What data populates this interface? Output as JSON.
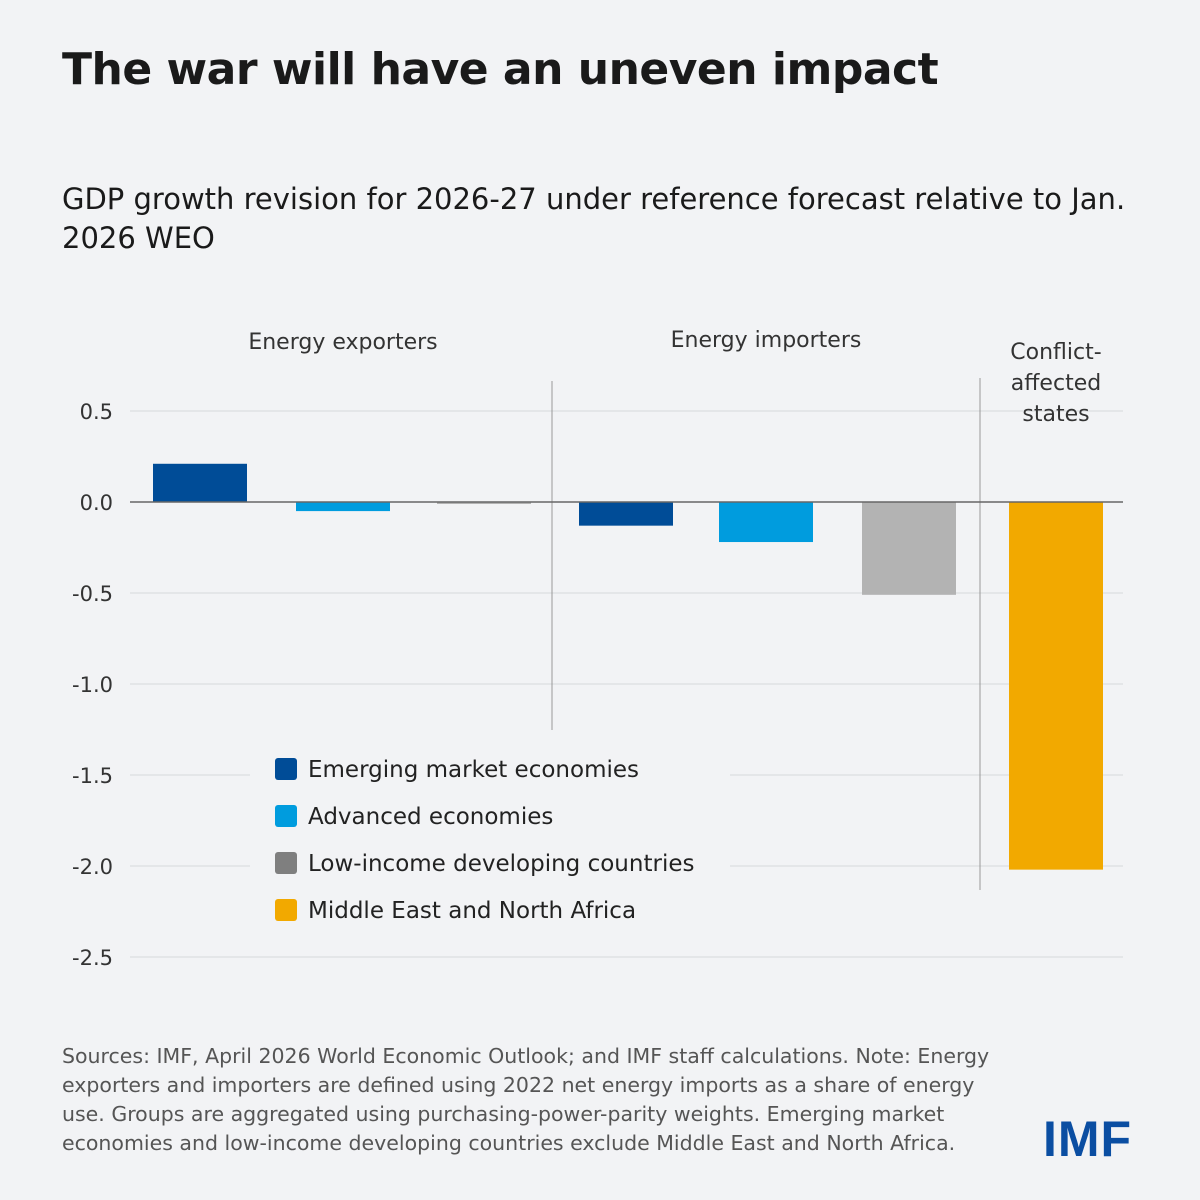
{
  "title": "The war will have an uneven impact",
  "subtitle": "GDP growth revision for 2026-27 under reference forecast relative to Jan. 2026 WEO",
  "note": "Sources: IMF, April 2026 World Economic Outlook; and IMF staff calculations. Note: Energy exporters and importers are defined using 2022 net energy imports as a share of energy use. Groups are aggregated using purchasing-power-parity weights. Emerging market economies and low-income developing countries exclude Middle East and North Africa.",
  "logo": "IMF",
  "chart_data": {
    "type": "bar",
    "ylim": [
      -2.5,
      0.5
    ],
    "yticks": [
      "0.5",
      "0.0",
      "-0.5",
      "-1.0",
      "-1.5",
      "-2.0",
      "-2.5"
    ],
    "grid": true,
    "legend_placement": "bottom-left",
    "groups": [
      {
        "label": "Energy exporters",
        "bars": [
          {
            "series": "Emerging market economies",
            "value": 0.21
          },
          {
            "series": "Advanced economies",
            "value": -0.05
          },
          {
            "series": "Low-income developing countries",
            "value": -0.01
          }
        ]
      },
      {
        "label": "Energy importers",
        "bars": [
          {
            "series": "Emerging market economies",
            "value": -0.13
          },
          {
            "series": "Advanced economies",
            "value": -0.22
          },
          {
            "series": "Low-income developing countries",
            "value": -0.51
          }
        ]
      },
      {
        "label": "Conflict-affected states",
        "bars": [
          {
            "series": "Middle East and North Africa",
            "value": -2.02
          }
        ]
      }
    ],
    "series": [
      {
        "name": "Emerging market economies",
        "color": "#004c97"
      },
      {
        "name": "Advanced economies",
        "color": "#009cde"
      },
      {
        "name": "Low-income developing countries",
        "color": "#b3b3b3",
        "legend_color": "#7f7f7f"
      },
      {
        "name": "Middle East and North Africa",
        "color": "#f2a900"
      }
    ]
  }
}
